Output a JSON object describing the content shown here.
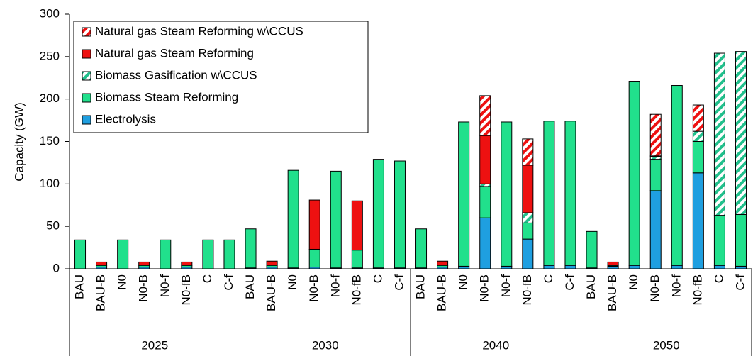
{
  "chart_data": {
    "type": "stacked-bar",
    "y_label": "Capacity (GW)",
    "categories": [
      "BAU",
      "BAU-B",
      "N0",
      "N0-B",
      "N0-f",
      "N0-fB",
      "C",
      "C-f",
      "BAU",
      "BAU-B",
      "N0",
      "N0-B",
      "N0-f",
      "N0-fB",
      "C",
      "C-f",
      "BAU",
      "BAU-B",
      "N0",
      "N0-B",
      "N0-f",
      "N0-fB",
      "C",
      "C-f",
      "BAU",
      "BAU-B",
      "N0",
      "N0-B",
      "N0-f",
      "N0-fB",
      "C",
      "C-f"
    ],
    "groups": [
      "2025",
      "2030",
      "2040",
      "2050"
    ],
    "series": [
      {
        "name": "Electrolysis",
        "color": "#1f9fe0",
        "hatch": false,
        "values": [
          0,
          2,
          0,
          2,
          0,
          2,
          0,
          0,
          1,
          2,
          1,
          2,
          1,
          1,
          1,
          1,
          1,
          2,
          3,
          60,
          3,
          35,
          4,
          4,
          1,
          3,
          4,
          92,
          4,
          113,
          4,
          3
        ]
      },
      {
        "name": "Biomass Steam Reforming",
        "color": "#21e08c",
        "hatch": false,
        "values": [
          34,
          2,
          34,
          2,
          34,
          2,
          34,
          34,
          46,
          2,
          115,
          21,
          114,
          21,
          128,
          126,
          46,
          2,
          170,
          37,
          170,
          19,
          170,
          170,
          43,
          1,
          217,
          37,
          212,
          37,
          59,
          61
        ]
      },
      {
        "name": "Biomass Gasification w\\CCUS",
        "color": "#21c08c",
        "hatch": true,
        "values": [
          0,
          0,
          0,
          0,
          0,
          0,
          0,
          0,
          0,
          0,
          0,
          0,
          0,
          0,
          0,
          0,
          0,
          0,
          0,
          3,
          0,
          12,
          0,
          0,
          0,
          0,
          0,
          3,
          0,
          12,
          191,
          192
        ]
      },
      {
        "name": "Natural gas Steam Reforming",
        "color": "#ee1111",
        "hatch": false,
        "values": [
          0,
          4,
          0,
          4,
          0,
          4,
          0,
          0,
          0,
          5,
          0,
          58,
          0,
          58,
          0,
          0,
          0,
          5,
          0,
          57,
          0,
          56,
          0,
          0,
          0,
          4,
          0,
          1,
          0,
          0,
          0,
          0
        ]
      },
      {
        "name": "Natural gas Steam Reforming w\\CCUS",
        "color": "#ee1111",
        "hatch": true,
        "values": [
          0,
          0,
          0,
          0,
          0,
          0,
          0,
          0,
          0,
          0,
          0,
          0,
          0,
          0,
          0,
          0,
          0,
          0,
          0,
          47,
          0,
          31,
          0,
          0,
          0,
          0,
          0,
          49,
          0,
          31,
          0,
          0
        ]
      }
    ],
    "ylim": [
      0,
      300
    ],
    "yticks": [
      0,
      50,
      100,
      150,
      200,
      250,
      300
    ],
    "legend": "top-left"
  }
}
